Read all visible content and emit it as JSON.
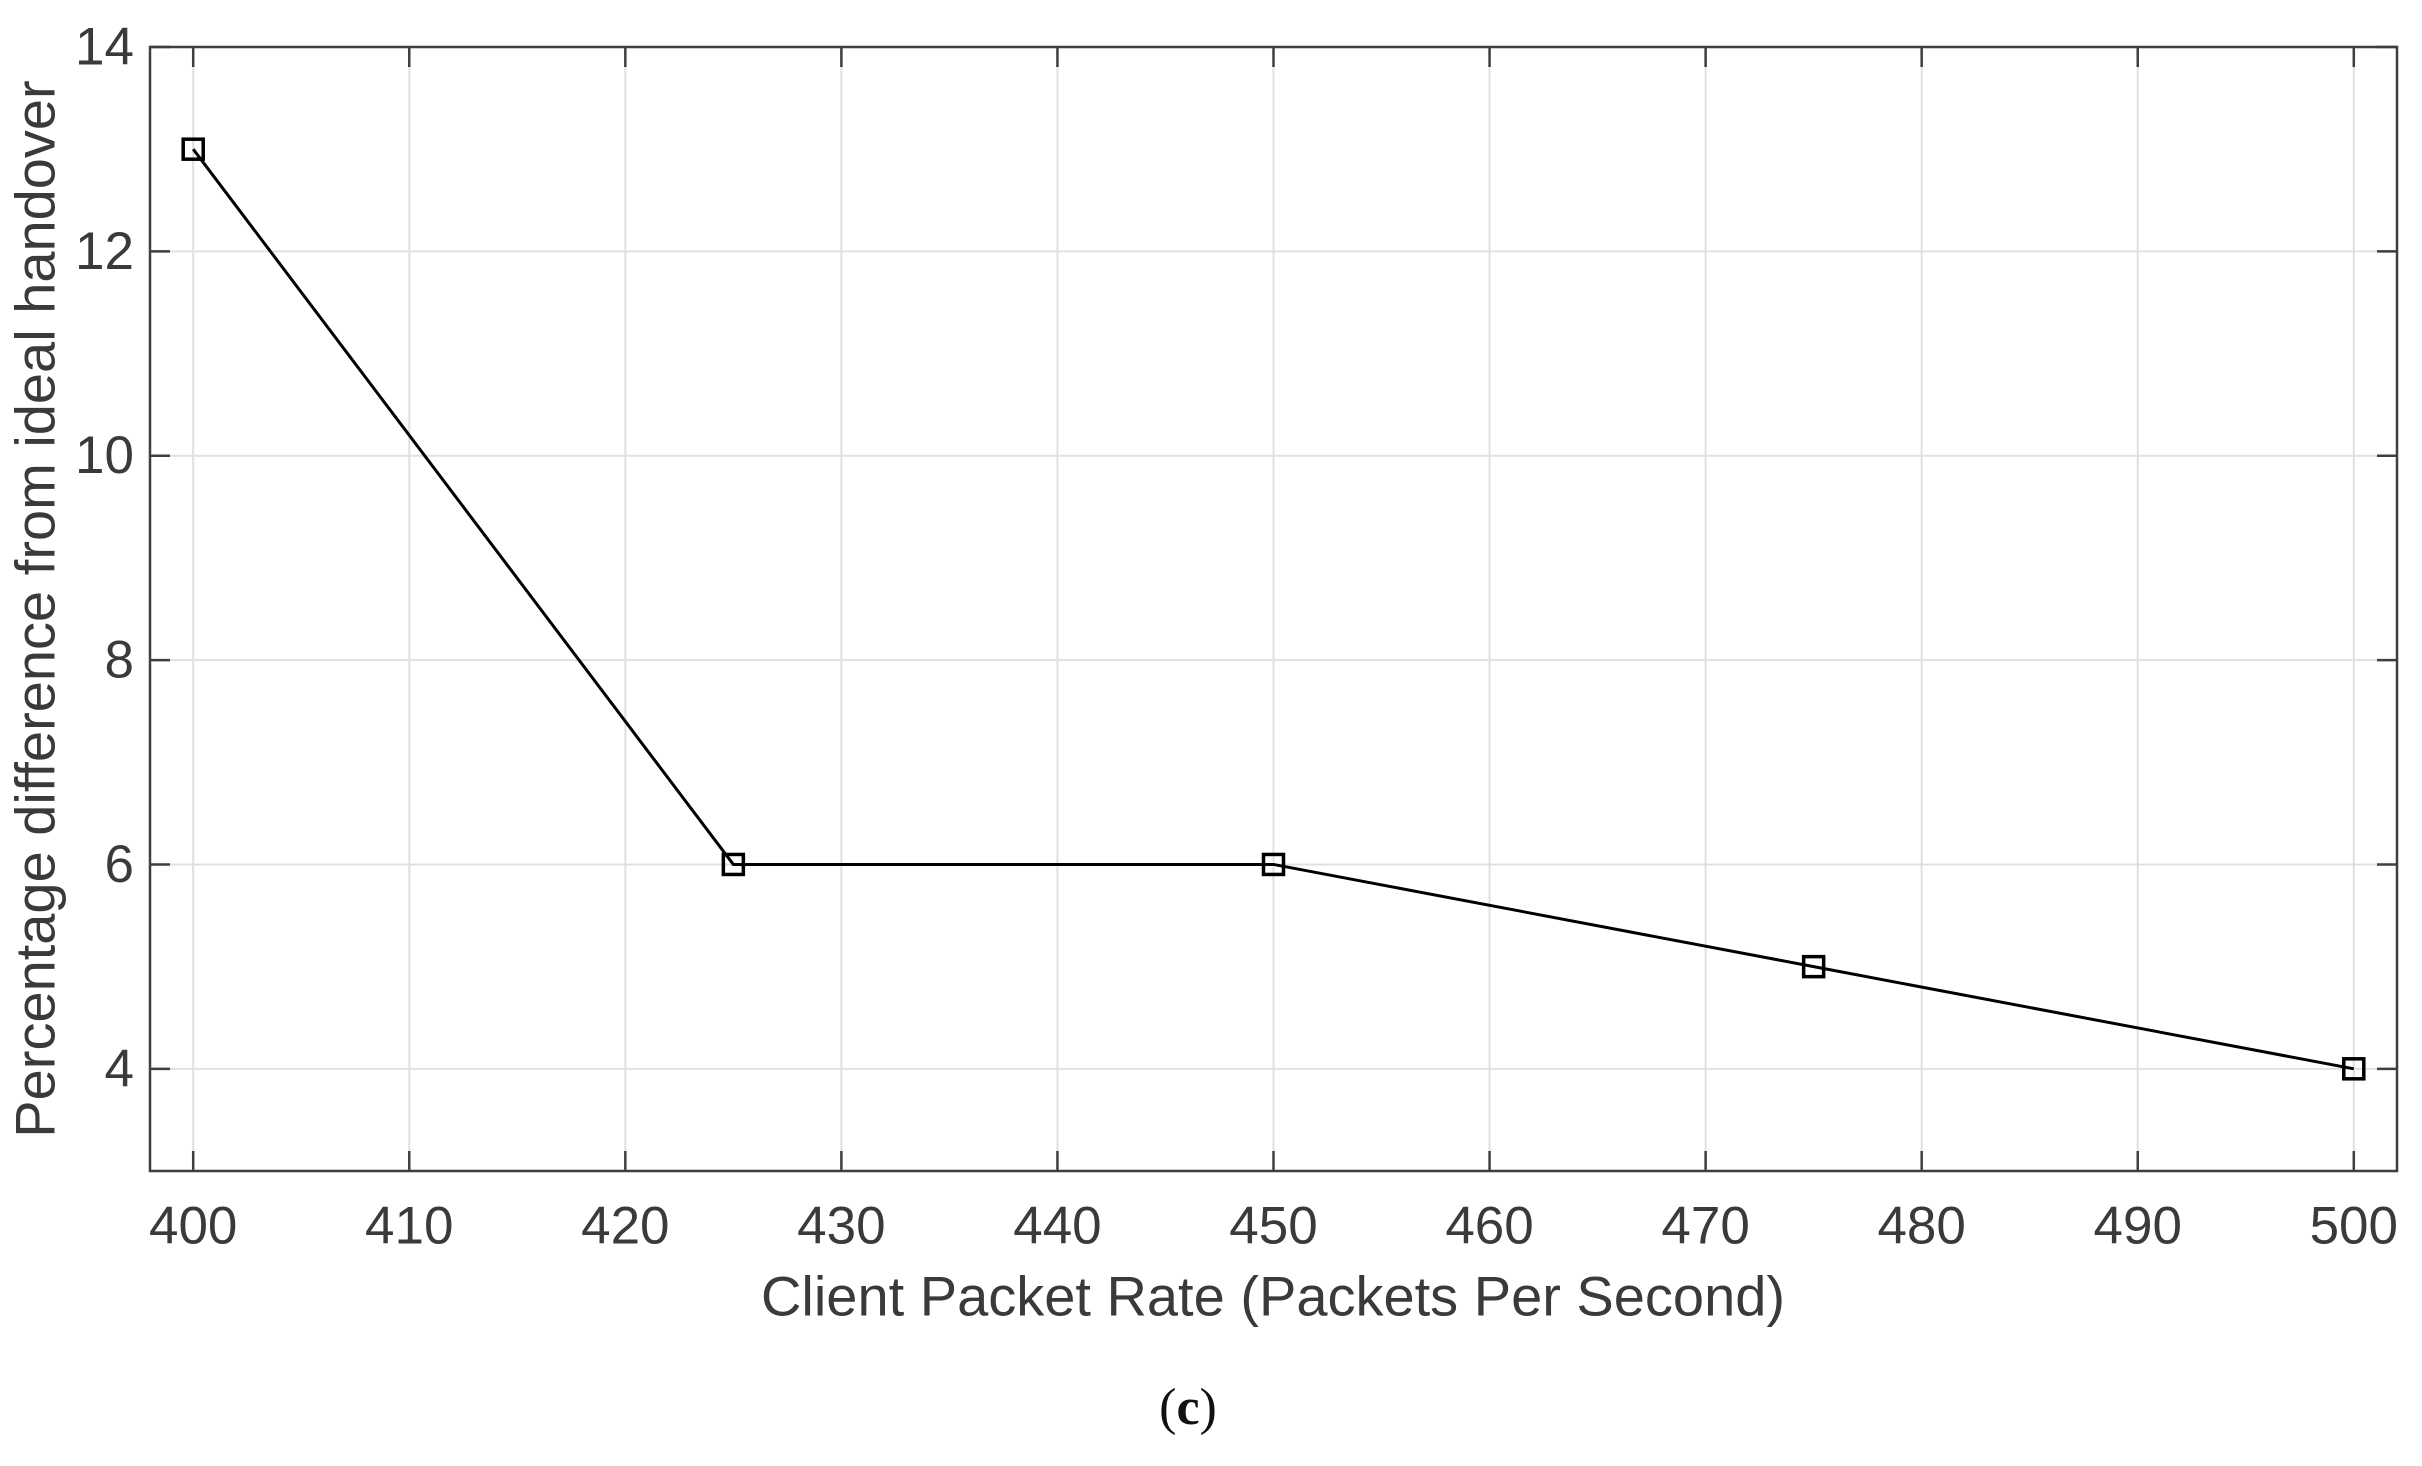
{
  "figure": {
    "caption": {
      "open": "(",
      "letter": "c",
      "close": ")"
    }
  },
  "chart_data": {
    "type": "line",
    "title": "",
    "xlabel": "Client Packet Rate (Packets Per Second)",
    "ylabel": "Percentage difference from ideal handover",
    "x": [
      400,
      425,
      450,
      475,
      500
    ],
    "series": [
      {
        "name": "percentage difference from ideal handover",
        "values": [
          13,
          6,
          6,
          5,
          4
        ]
      }
    ],
    "xlim": [
      398,
      502
    ],
    "ylim": [
      3,
      14
    ],
    "x_ticks": [
      400,
      410,
      420,
      430,
      440,
      450,
      460,
      470,
      480,
      490,
      500
    ],
    "y_ticks": [
      4,
      6,
      8,
      10,
      12,
      14
    ],
    "grid": true,
    "legend_position": "none",
    "marker": "square",
    "colors": {
      "line": "#000000",
      "marker_stroke": "#000000",
      "grid": "#e0e0e0",
      "axis": "#3f3f3f",
      "text": "#3a3a3a",
      "background": "#ffffff"
    }
  }
}
